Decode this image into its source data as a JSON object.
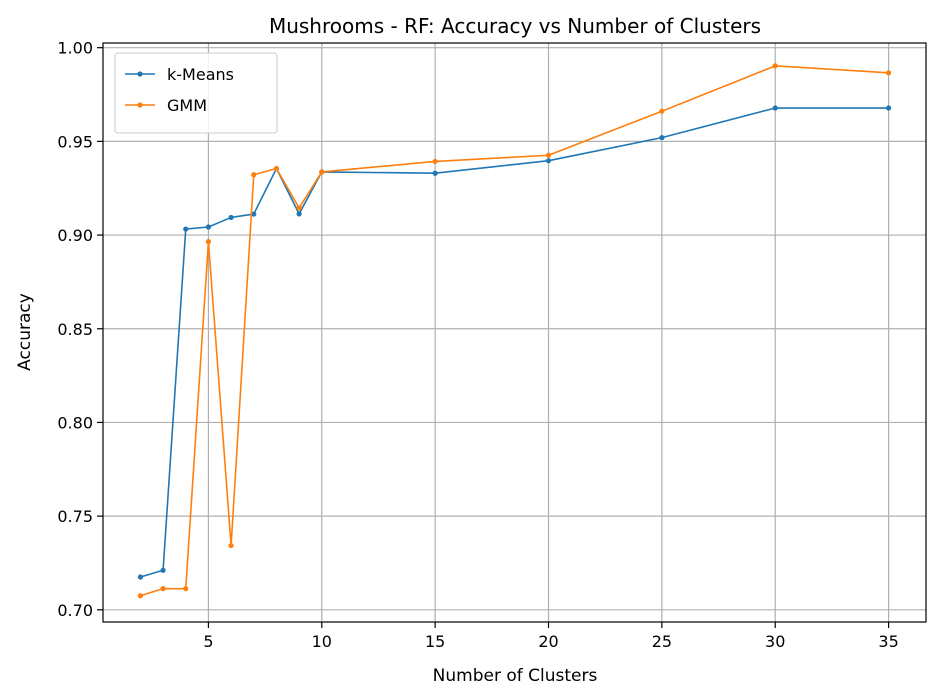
{
  "chart_data": {
    "type": "line",
    "title": "Mushrooms - RF: Accuracy vs Number of Clusters",
    "xlabel": "Number of Clusters",
    "ylabel": "Accuracy",
    "xlim": [
      0.35,
      36.65
    ],
    "ylim": [
      0.6935,
      1.0025
    ],
    "xticks": [
      5,
      10,
      15,
      20,
      25,
      30,
      35
    ],
    "xtick_labels": [
      "5",
      "10",
      "15",
      "20",
      "25",
      "30",
      "35"
    ],
    "yticks": [
      0.7,
      0.75,
      0.8,
      0.85,
      0.9,
      0.95,
      1.0
    ],
    "ytick_labels": [
      "0.70",
      "0.75",
      "0.80",
      "0.85",
      "0.90",
      "0.95",
      "1.00"
    ],
    "grid": true,
    "legend_position": "top-left",
    "x": [
      2,
      3,
      4,
      5,
      6,
      7,
      8,
      9,
      10,
      15,
      20,
      25,
      30,
      35
    ],
    "series": [
      {
        "name": "k-Means",
        "color": "#1f77b4",
        "values": [
          0.7175,
          0.7211,
          0.9032,
          0.9043,
          0.9094,
          0.9112,
          0.9355,
          0.9113,
          0.9337,
          0.933,
          0.9397,
          0.952,
          0.9678,
          0.9678
        ]
      },
      {
        "name": "GMM",
        "color": "#ff7f0e",
        "values": [
          0.7075,
          0.7113,
          0.7113,
          0.8965,
          0.7343,
          0.9322,
          0.9355,
          0.9145,
          0.9337,
          0.9393,
          0.9426,
          0.9661,
          0.9903,
          0.9866
        ]
      }
    ]
  }
}
